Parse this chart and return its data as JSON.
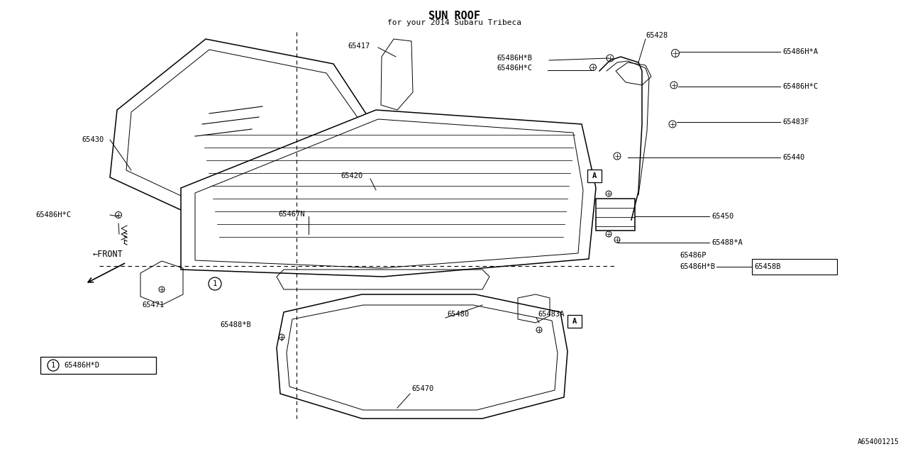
{
  "title": "SUN ROOF",
  "subtitle": "for your 2014 Subaru Tribeca",
  "bg_color": "#ffffff",
  "diagram_ref": "A654001215",
  "lw_thin": 0.7,
  "lw_med": 1.1,
  "lw_thick": 1.6,
  "label_fs": 7.5
}
